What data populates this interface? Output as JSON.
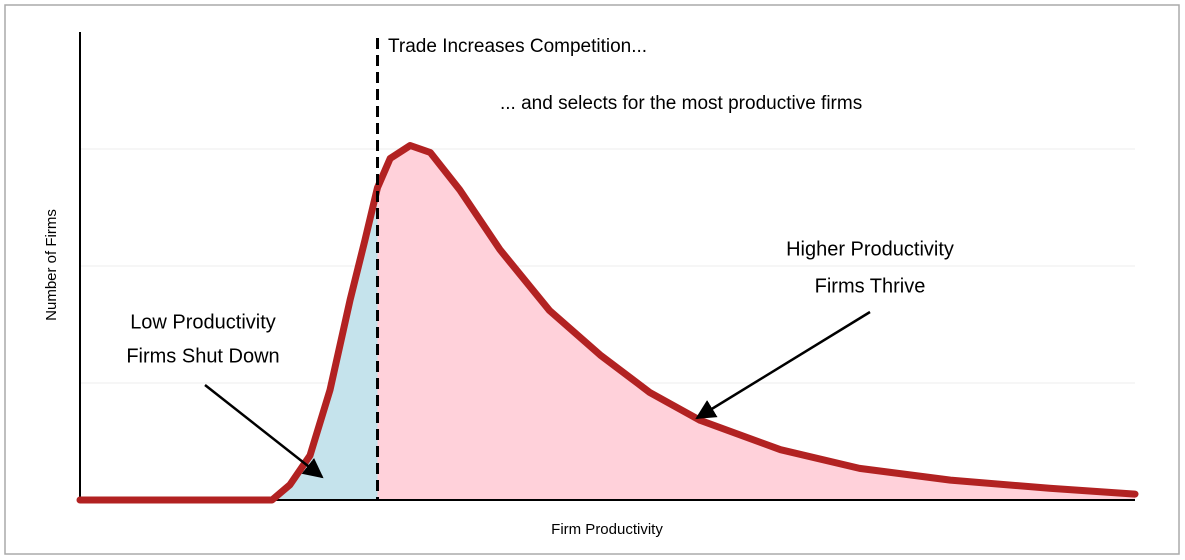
{
  "chart_data": {
    "type": "area",
    "title": "Trade Increases Competition...",
    "subtitle": "... and selects for the most productive firms",
    "x_label": "Firm Productivity",
    "y_label": "Number of Firms",
    "annotations": [
      {
        "lines": [
          "Low Productivity",
          "Firms Shut Down"
        ]
      },
      {
        "lines": [
          "Higher Productivity",
          "Firms Thrive"
        ]
      }
    ],
    "x": [
      0,
      1.82,
      1.99,
      2.18,
      2.37,
      2.56,
      2.7,
      2.82,
      2.94,
      3.13,
      3.32,
      3.6,
      3.98,
      4.45,
      4.93,
      5.4,
      5.88,
      6.64,
      7.39,
      8.25,
      9.19,
      10
    ],
    "values": [
      0,
      0,
      0.13,
      0.38,
      0.94,
      1.71,
      2.22,
      2.67,
      2.92,
      3.03,
      2.97,
      2.65,
      2.14,
      1.62,
      1.24,
      0.92,
      0.68,
      0.43,
      0.27,
      0.17,
      0.1,
      0.05
    ],
    "cutoff": 2.82,
    "line_color": "#b22222",
    "low_fill": "#c5e3ec",
    "high_fill": "#ffd1da",
    "xlim": [
      0,
      10
    ],
    "ylim": [
      0,
      4
    ],
    "yticks": [
      1,
      2,
      3
    ],
    "ytick_labels": false,
    "grid": true
  }
}
